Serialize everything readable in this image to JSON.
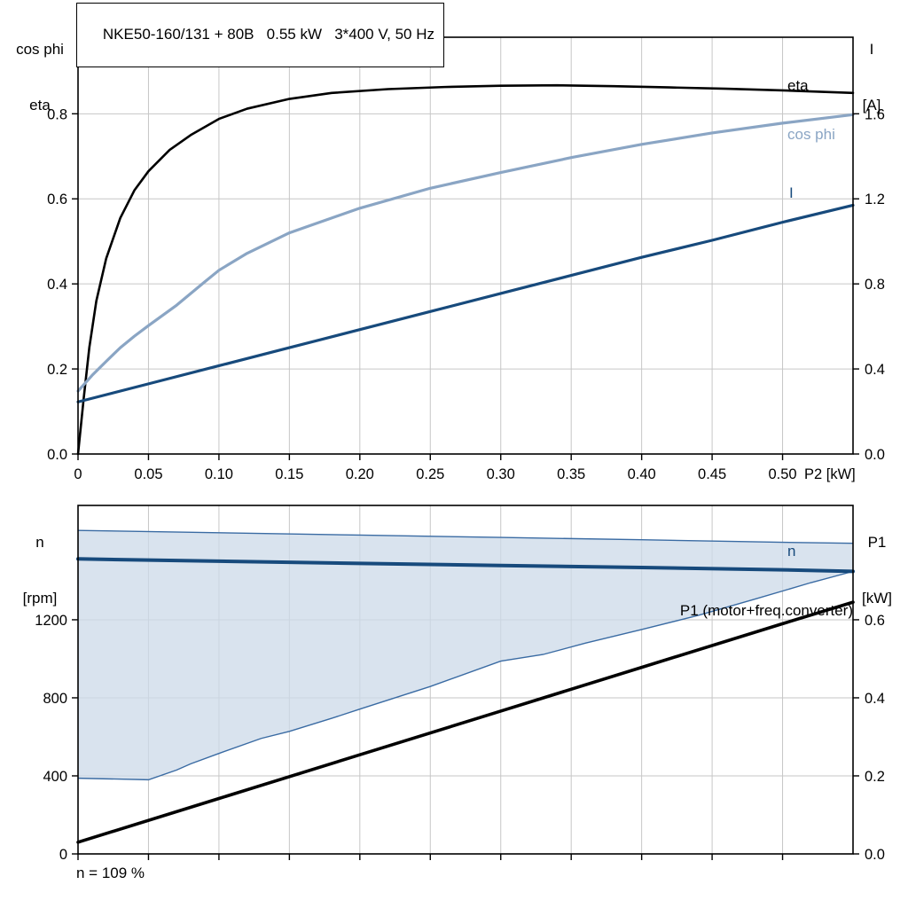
{
  "title": "NKE50-160/131 + 80B   0.55 kW   3*400 V, 50 Hz",
  "footnote": "n = 109 %",
  "colors": {
    "grid": "#c6c6c6",
    "frame": "#000000",
    "eta": "#000000",
    "cos_phi": "#8aa5c4",
    "current": "#174a7c",
    "speed": "#174a7c",
    "p1": "#000000",
    "band_fill": "#ccd9e8",
    "band_stroke": "#3a6ba3"
  },
  "labels": {
    "top_left": [
      "cos phi",
      "eta"
    ],
    "top_right": [
      "I",
      "[A]"
    ],
    "bottom_left": [
      "n",
      "[rpm]"
    ],
    "bottom_right": [
      "P1",
      "[kW]"
    ],
    "eta_curve": "eta",
    "cos_phi_curve": "cos phi",
    "current_curve": "I",
    "speed_curve": "n",
    "p1_curve": "P1 (motor+freq.converter)",
    "x_axis": "P2 [kW]"
  },
  "chart_data": [
    {
      "name": "electrical-characteristics-chart",
      "type": "line",
      "title": "NKE50-160/131 + 80B   0.55 kW   3*400 V, 50 Hz",
      "xlabel": "P2 [kW]",
      "xlim": [
        0,
        0.55
      ],
      "x_ticks": [
        0,
        0.05,
        0.1,
        0.15,
        0.2,
        0.25,
        0.3,
        0.35,
        0.4,
        0.45,
        0.5
      ],
      "x_tick_labels": [
        "0",
        "0.05",
        "0.10",
        "0.15",
        "0.20",
        "0.25",
        "0.30",
        "0.35",
        "0.40",
        "0.45",
        "0.50"
      ],
      "y_left": {
        "name": "cos phi / eta",
        "lim": [
          0,
          0.98
        ],
        "tick_values": [
          0,
          0.2,
          0.4,
          0.6,
          0.8
        ],
        "tick_labels": [
          "0.0",
          "0.2",
          "0.4",
          "0.6",
          "0.8"
        ]
      },
      "y_right": {
        "name": "I [A]",
        "lim": [
          0,
          1.96
        ],
        "tick_values": [
          0,
          0.4,
          0.8,
          1.2,
          1.6
        ],
        "tick_labels": [
          "0.0",
          "0.4",
          "0.8",
          "1.2",
          "1.6"
        ]
      },
      "series": [
        {
          "name": "eta",
          "axis": "left",
          "color": "#000000",
          "width": 2.6,
          "points": [
            [
              0,
              0
            ],
            [
              0.004,
              0.13
            ],
            [
              0.008,
              0.25
            ],
            [
              0.013,
              0.36
            ],
            [
              0.02,
              0.46
            ],
            [
              0.03,
              0.555
            ],
            [
              0.04,
              0.62
            ],
            [
              0.05,
              0.665
            ],
            [
              0.065,
              0.715
            ],
            [
              0.08,
              0.75
            ],
            [
              0.1,
              0.788
            ],
            [
              0.12,
              0.812
            ],
            [
              0.15,
              0.835
            ],
            [
              0.18,
              0.849
            ],
            [
              0.22,
              0.858
            ],
            [
              0.26,
              0.863
            ],
            [
              0.3,
              0.866
            ],
            [
              0.34,
              0.867
            ],
            [
              0.38,
              0.865
            ],
            [
              0.42,
              0.862
            ],
            [
              0.46,
              0.859
            ],
            [
              0.5,
              0.855
            ],
            [
              0.55,
              0.849
            ]
          ]
        },
        {
          "name": "cos phi",
          "axis": "left",
          "color": "#8aa5c4",
          "width": 3.2,
          "points": [
            [
              0,
              0.148
            ],
            [
              0.01,
              0.185
            ],
            [
              0.02,
              0.218
            ],
            [
              0.03,
              0.25
            ],
            [
              0.04,
              0.277
            ],
            [
              0.05,
              0.302
            ],
            [
              0.07,
              0.35
            ],
            [
              0.09,
              0.405
            ],
            [
              0.1,
              0.432
            ],
            [
              0.12,
              0.472
            ],
            [
              0.15,
              0.52
            ],
            [
              0.18,
              0.555
            ],
            [
              0.2,
              0.578
            ],
            [
              0.25,
              0.625
            ],
            [
              0.3,
              0.662
            ],
            [
              0.35,
              0.697
            ],
            [
              0.4,
              0.728
            ],
            [
              0.45,
              0.755
            ],
            [
              0.5,
              0.778
            ],
            [
              0.55,
              0.798
            ]
          ]
        },
        {
          "name": "I",
          "axis": "right",
          "color": "#174a7c",
          "width": 3.2,
          "points": [
            [
              0,
              0.245
            ],
            [
              0.05,
              0.33
            ],
            [
              0.1,
              0.415
            ],
            [
              0.15,
              0.5
            ],
            [
              0.2,
              0.585
            ],
            [
              0.25,
              0.67
            ],
            [
              0.3,
              0.755
            ],
            [
              0.35,
              0.84
            ],
            [
              0.4,
              0.925
            ],
            [
              0.45,
              1.005
            ],
            [
              0.5,
              1.09
            ],
            [
              0.55,
              1.17
            ]
          ]
        }
      ]
    },
    {
      "name": "speed-power-chart",
      "type": "line",
      "xlabel": "",
      "xlim": [
        0,
        0.55
      ],
      "x_ticks": [
        0,
        0.05,
        0.1,
        0.15,
        0.2,
        0.25,
        0.3,
        0.35,
        0.4,
        0.45,
        0.5
      ],
      "x_tick_labels": [],
      "y_left": {
        "name": "n [rpm]",
        "lim": [
          0,
          1786
        ],
        "tick_values": [
          0,
          400,
          800,
          1200
        ],
        "tick_labels": [
          "0",
          "400",
          "800",
          "1200"
        ]
      },
      "y_right": {
        "name": "P1 [kW]",
        "lim": [
          0,
          0.893
        ],
        "tick_values": [
          0,
          0.2,
          0.4,
          0.6
        ],
        "tick_labels": [
          "0.0",
          "0.2",
          "0.4",
          "0.6"
        ]
      },
      "band": {
        "name": "speed-control-range",
        "fill": "#ccd9e8",
        "fill_opacity": 0.75,
        "stroke": "#3a6ba3",
        "stroke_width": 1.4,
        "upper": [
          [
            0,
            1658
          ],
          [
            0.1,
            1646
          ],
          [
            0.2,
            1634
          ],
          [
            0.3,
            1622
          ],
          [
            0.4,
            1610
          ],
          [
            0.5,
            1597
          ],
          [
            0.55,
            1592
          ]
        ],
        "lower": [
          [
            0,
            388
          ],
          [
            0.05,
            380
          ],
          [
            0.07,
            430
          ],
          [
            0.08,
            462
          ],
          [
            0.1,
            515
          ],
          [
            0.13,
            592
          ],
          [
            0.15,
            628
          ],
          [
            0.18,
            695
          ],
          [
            0.2,
            742
          ],
          [
            0.25,
            858
          ],
          [
            0.3,
            988
          ],
          [
            0.33,
            1022
          ],
          [
            0.36,
            1080
          ],
          [
            0.4,
            1150
          ],
          [
            0.44,
            1222
          ],
          [
            0.48,
            1305
          ],
          [
            0.52,
            1390
          ],
          [
            0.55,
            1448
          ]
        ]
      },
      "series": [
        {
          "name": "n",
          "axis": "left",
          "color": "#174a7c",
          "width": 4,
          "points": [
            [
              0,
              1512
            ],
            [
              0.1,
              1500
            ],
            [
              0.2,
              1489
            ],
            [
              0.3,
              1478
            ],
            [
              0.4,
              1468
            ],
            [
              0.5,
              1456
            ],
            [
              0.55,
              1448
            ]
          ]
        },
        {
          "name": "P1 (motor+freq.converter)",
          "axis": "right",
          "color": "#000000",
          "width": 3.6,
          "points": [
            [
              0,
              0.03
            ],
            [
              0.1,
              0.142
            ],
            [
              0.2,
              0.254
            ],
            [
              0.3,
              0.366
            ],
            [
              0.4,
              0.478
            ],
            [
              0.5,
              0.59
            ],
            [
              0.55,
              0.645
            ]
          ]
        }
      ]
    }
  ]
}
